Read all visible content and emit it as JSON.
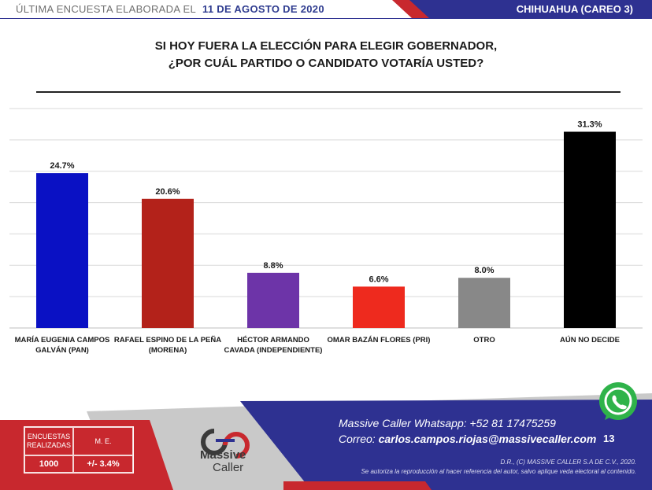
{
  "header": {
    "left_text": "ÚLTIMA ENCUESTA ELABORADA EL",
    "date": "11 DE AGOSTO DE 2020",
    "right_text": "CHIHUAHUA (CAREO 3)"
  },
  "title": {
    "line1": "SI HOY FUERA LA ELECCIÓN PARA ELEGIR GOBERNADOR,",
    "line2": "¿POR CUÁL PARTIDO O CANDIDATO VOTARÍA USTED?"
  },
  "chart_data": {
    "type": "bar",
    "categories": [
      [
        "MARÍA EUGENIA CAMPOS",
        "GALVÁN (PAN)"
      ],
      [
        "RAFAEL ESPINO DE LA PEÑA",
        "(MORENA)"
      ],
      [
        "HÉCTOR ARMANDO",
        "CAVADA  (INDEPENDIENTE)"
      ],
      [
        "OMAR BAZÁN FLORES (PRI)"
      ],
      [
        "OTRO"
      ],
      [
        "AÚN NO DECIDE"
      ]
    ],
    "values": [
      24.7,
      20.6,
      8.8,
      6.6,
      8.0,
      31.3
    ],
    "value_labels": [
      "24.7%",
      "20.6%",
      "8.8%",
      "6.6%",
      "8.0%",
      "31.3%"
    ],
    "colors": [
      "#0a11c4",
      "#b3221a",
      "#6d34a8",
      "#ee2a1e",
      "#888888",
      "#000000"
    ],
    "ylim": [
      0,
      35
    ],
    "grid": true,
    "legend": "none"
  },
  "footer": {
    "stats": {
      "surveys_label": "ENCUESTAS REALIZADAS",
      "surveys_value": "1000",
      "me_label": "M. E.",
      "me_value": "+/- 3.4%"
    },
    "logo_line1": "Massive",
    "logo_line2": "Caller",
    "whatsapp_line": "Massive Caller Whatsapp:  +52 81 17475259",
    "mail_label": "Correo: ",
    "mail_value": "carlos.campos.riojas@massivecaller.com",
    "page_number": "13",
    "copyright": "D.R., (C) MASSIVE CALLER S.A DE C.V., 2020.",
    "notice": "Se autoriza la reproducción al hacer referencia del autor, salvo aplique veda electoral al contenido.",
    "colors": {
      "navy": "#2e3191",
      "red": "#c8282e",
      "grey": "#c9c9c9",
      "whatsapp": "#2fb34a"
    }
  }
}
